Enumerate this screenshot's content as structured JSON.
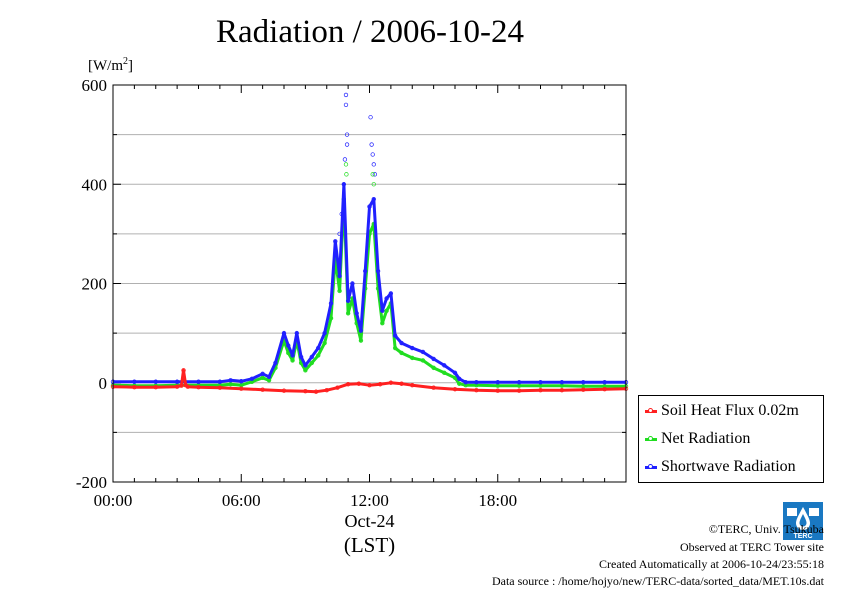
{
  "chart_data": {
    "type": "line",
    "title": "Radiation / 2006-10-24",
    "ylabel_unit": "[W/m",
    "ylabel_sup": "2",
    "ylabel_close": "]",
    "ylim": [
      -200,
      600
    ],
    "yticks": [
      -200,
      0,
      200,
      400,
      600
    ],
    "ytick_labels": [
      "-200",
      "0",
      "200",
      "400",
      "600"
    ],
    "xlim": [
      0,
      24
    ],
    "xticks": [
      0,
      6,
      12,
      18
    ],
    "xtick_labels": [
      "00:00",
      "06:00",
      "12:00",
      "18:00"
    ],
    "x_date_label": "Oct-24",
    "xlabel": "(LST)",
    "grid": true,
    "legend_position": "outside-right",
    "series": [
      {
        "name": "Soil Heat Flux 0.02m",
        "color": "#ff2020",
        "x": [
          0,
          1,
          2,
          3,
          3.2,
          3.3,
          3.4,
          3.5,
          4,
          5,
          6,
          7,
          8,
          9,
          9.5,
          10,
          10.5,
          11,
          11.5,
          12,
          12.5,
          13,
          13.5,
          14,
          15,
          16,
          17,
          18,
          19,
          20,
          21,
          22,
          23,
          24
        ],
        "y": [
          -8,
          -9,
          -9,
          -8,
          -6,
          25,
          -5,
          -8,
          -9,
          -10,
          -12,
          -14,
          -16,
          -17,
          -18,
          -15,
          -10,
          -3,
          -2,
          -5,
          -3,
          0,
          -2,
          -5,
          -10,
          -13,
          -15,
          -16,
          -16,
          -15,
          -15,
          -14,
          -13,
          -12
        ]
      },
      {
        "name": "Net Radiation",
        "color": "#20dd20",
        "x": [
          0,
          1,
          2,
          3,
          4,
          5,
          5.5,
          6,
          6.5,
          7,
          7.3,
          7.6,
          8,
          8.2,
          8.4,
          8.6,
          8.8,
          9,
          9.3,
          9.6,
          9.9,
          10.2,
          10.4,
          10.6,
          10.8,
          11,
          11.2,
          11.4,
          11.6,
          11.8,
          12,
          12.2,
          12.4,
          12.6,
          12.8,
          13,
          13.2,
          13.5,
          14,
          14.5,
          15,
          15.5,
          16,
          16.2,
          16.5,
          17,
          18,
          19,
          20,
          21,
          22,
          23,
          24
        ],
        "y": [
          -5,
          -6,
          -6,
          -5,
          -5,
          -5,
          -3,
          -5,
          2,
          10,
          5,
          30,
          85,
          60,
          45,
          85,
          40,
          25,
          40,
          55,
          80,
          130,
          250,
          185,
          370,
          140,
          170,
          120,
          85,
          190,
          300,
          320,
          190,
          120,
          145,
          160,
          70,
          60,
          50,
          45,
          30,
          20,
          10,
          -2,
          -5,
          -5,
          -6,
          -6,
          -6,
          -6,
          -7,
          -7,
          -7
        ]
      },
      {
        "name": "Shortwave Radiation",
        "color": "#2020ff",
        "x": [
          0,
          1,
          2,
          3,
          4,
          5,
          5.5,
          6,
          6.5,
          7,
          7.3,
          7.6,
          8,
          8.2,
          8.4,
          8.6,
          8.8,
          9,
          9.3,
          9.6,
          9.9,
          10.2,
          10.4,
          10.6,
          10.8,
          11,
          11.2,
          11.4,
          11.6,
          11.8,
          12,
          12.2,
          12.4,
          12.6,
          12.8,
          13,
          13.2,
          13.5,
          14,
          14.5,
          15,
          15.5,
          16,
          16.2,
          16.5,
          17,
          18,
          19,
          20,
          21,
          22,
          23,
          24
        ],
        "y": [
          2,
          2,
          2,
          2,
          2,
          2,
          5,
          3,
          8,
          18,
          12,
          40,
          100,
          75,
          55,
          100,
          52,
          35,
          52,
          70,
          100,
          160,
          285,
          215,
          400,
          165,
          200,
          140,
          105,
          225,
          355,
          370,
          225,
          145,
          170,
          180,
          95,
          80,
          70,
          62,
          48,
          35,
          20,
          8,
          1,
          1,
          1,
          1,
          1,
          1,
          1,
          1,
          1
        ]
      }
    ],
    "outlier_points": [
      {
        "series": "Shortwave Radiation",
        "x": 10.9,
        "y": 580
      },
      {
        "series": "Shortwave Radiation",
        "x": 10.9,
        "y": 560
      },
      {
        "series": "Shortwave Radiation",
        "x": 10.95,
        "y": 500
      },
      {
        "series": "Shortwave Radiation",
        "x": 10.95,
        "y": 480
      },
      {
        "series": "Shortwave Radiation",
        "x": 10.85,
        "y": 450
      },
      {
        "series": "Shortwave Radiation",
        "x": 12.05,
        "y": 535
      },
      {
        "series": "Shortwave Radiation",
        "x": 12.1,
        "y": 480
      },
      {
        "series": "Shortwave Radiation",
        "x": 12.15,
        "y": 460
      },
      {
        "series": "Shortwave Radiation",
        "x": 12.2,
        "y": 440
      },
      {
        "series": "Shortwave Radiation",
        "x": 12.25,
        "y": 420
      },
      {
        "series": "Shortwave Radiation",
        "x": 10.7,
        "y": 340
      },
      {
        "series": "Shortwave Radiation",
        "x": 10.6,
        "y": 300
      },
      {
        "series": "Net Radiation",
        "x": 10.9,
        "y": 440
      },
      {
        "series": "Net Radiation",
        "x": 10.92,
        "y": 420
      },
      {
        "series": "Net Radiation",
        "x": 12.15,
        "y": 420
      },
      {
        "series": "Net Radiation",
        "x": 12.2,
        "y": 400
      }
    ]
  },
  "footer": {
    "copyright": "©TERC, Univ. Tsukuba",
    "site": "Observed at TERC Tower site",
    "created": "Created Automatically at 2006-10-24/23:55:18",
    "source": "Data source : /home/hojyo/new/TERC-data/sorted_data/MET.10s.dat"
  },
  "logo": {
    "text": "TERC",
    "color": "#1a78c2"
  }
}
